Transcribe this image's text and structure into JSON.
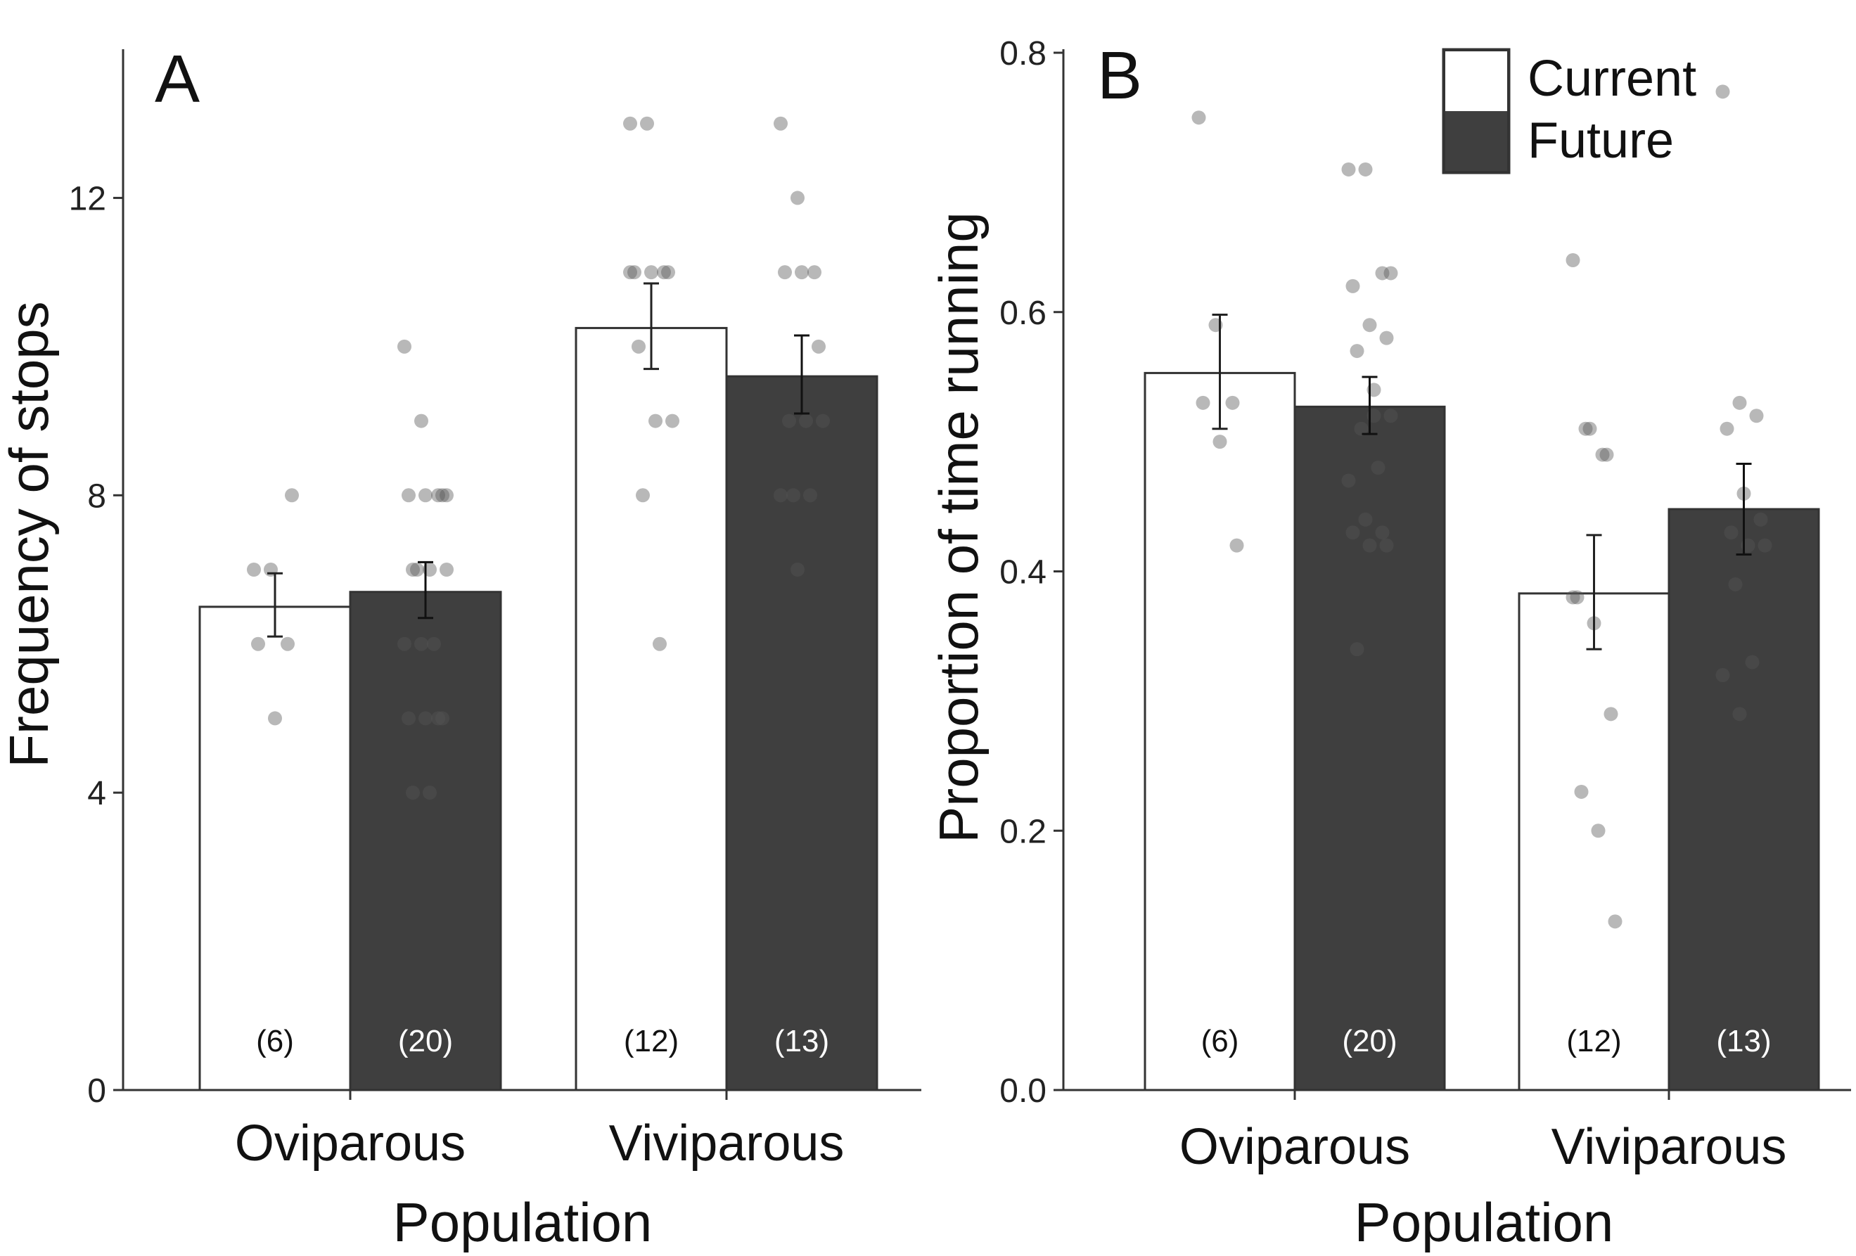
{
  "legend": {
    "items": [
      {
        "label": "Current",
        "color": "#ffffff"
      },
      {
        "label": "Future",
        "color": "#3f3f3f"
      }
    ]
  },
  "chart_data": [
    {
      "type": "bar",
      "panel": "A",
      "xlabel": "Population",
      "ylabel": "Frequency of stops",
      "ylim": [
        0,
        14
      ],
      "yticks": [
        0,
        4,
        8,
        12
      ],
      "ytick_labels": [
        "0",
        "4",
        "8",
        "12"
      ],
      "categories": [
        "Oviparous",
        "Viviparous"
      ],
      "series": [
        {
          "name": "Current",
          "values": [
            6.5,
            10.25
          ],
          "errors": [
            [
              6.1,
              6.95
            ],
            [
              9.7,
              10.85
            ]
          ],
          "n_labels": [
            "(6)",
            "(12)"
          ],
          "points": [
            [
              7,
              7,
              6,
              6,
              5,
              8
            ],
            [
              13,
              13,
              11,
              11,
              11,
              11,
              10,
              9,
              9,
              8,
              6,
              11
            ]
          ]
        },
        {
          "name": "Future",
          "values": [
            6.7,
            9.6
          ],
          "errors": [
            [
              6.35,
              7.1
            ],
            [
              9.1,
              10.15
            ]
          ],
          "n_labels": [
            "(20)",
            "(13)"
          ],
          "points": [
            [
              10,
              9,
              8,
              8,
              8,
              8,
              7,
              7,
              7,
              7,
              6,
              6,
              6,
              5,
              5,
              5,
              5,
              4,
              4,
              8
            ],
            [
              13,
              12,
              11,
              11,
              11,
              10,
              9,
              9,
              9,
              8,
              8,
              8,
              7
            ]
          ]
        }
      ]
    },
    {
      "type": "bar",
      "panel": "B",
      "xlabel": "Population",
      "ylabel": "Proportion of time running",
      "ylim": [
        0,
        0.8
      ],
      "yticks": [
        0,
        0.2,
        0.4,
        0.6,
        0.8
      ],
      "ytick_labels": [
        "0.0",
        "0.2",
        "0.4",
        "0.6",
        "0.8"
      ],
      "categories": [
        "Oviparous",
        "Viviparous"
      ],
      "series": [
        {
          "name": "Current",
          "values": [
            0.553,
            0.383
          ],
          "errors": [
            [
              0.51,
              0.598
            ],
            [
              0.34,
              0.428
            ]
          ],
          "n_labels": [
            "(6)",
            "(12)"
          ],
          "points": [
            [
              0.75,
              0.59,
              0.53,
              0.53,
              0.5,
              0.42
            ],
            [
              0.64,
              0.51,
              0.49,
              0.38,
              0.36,
              0.29,
              0.23,
              0.2,
              0.13,
              0.51,
              0.49,
              0.38
            ]
          ]
        },
        {
          "name": "Future",
          "values": [
            0.527,
            0.448
          ],
          "errors": [
            [
              0.506,
              0.55
            ],
            [
              0.413,
              0.483
            ]
          ],
          "n_labels": [
            "(20)",
            "(13)"
          ],
          "points": [
            [
              0.71,
              0.71,
              0.63,
              0.62,
              0.59,
              0.58,
              0.57,
              0.54,
              0.52,
              0.51,
              0.48,
              0.47,
              0.44,
              0.43,
              0.43,
              0.42,
              0.42,
              0.34,
              0.52,
              0.63
            ],
            [
              0.77,
              0.53,
              0.52,
              0.51,
              0.46,
              0.44,
              0.43,
              0.42,
              0.42,
              0.39,
              0.33,
              0.32,
              0.29
            ]
          ]
        }
      ]
    }
  ]
}
